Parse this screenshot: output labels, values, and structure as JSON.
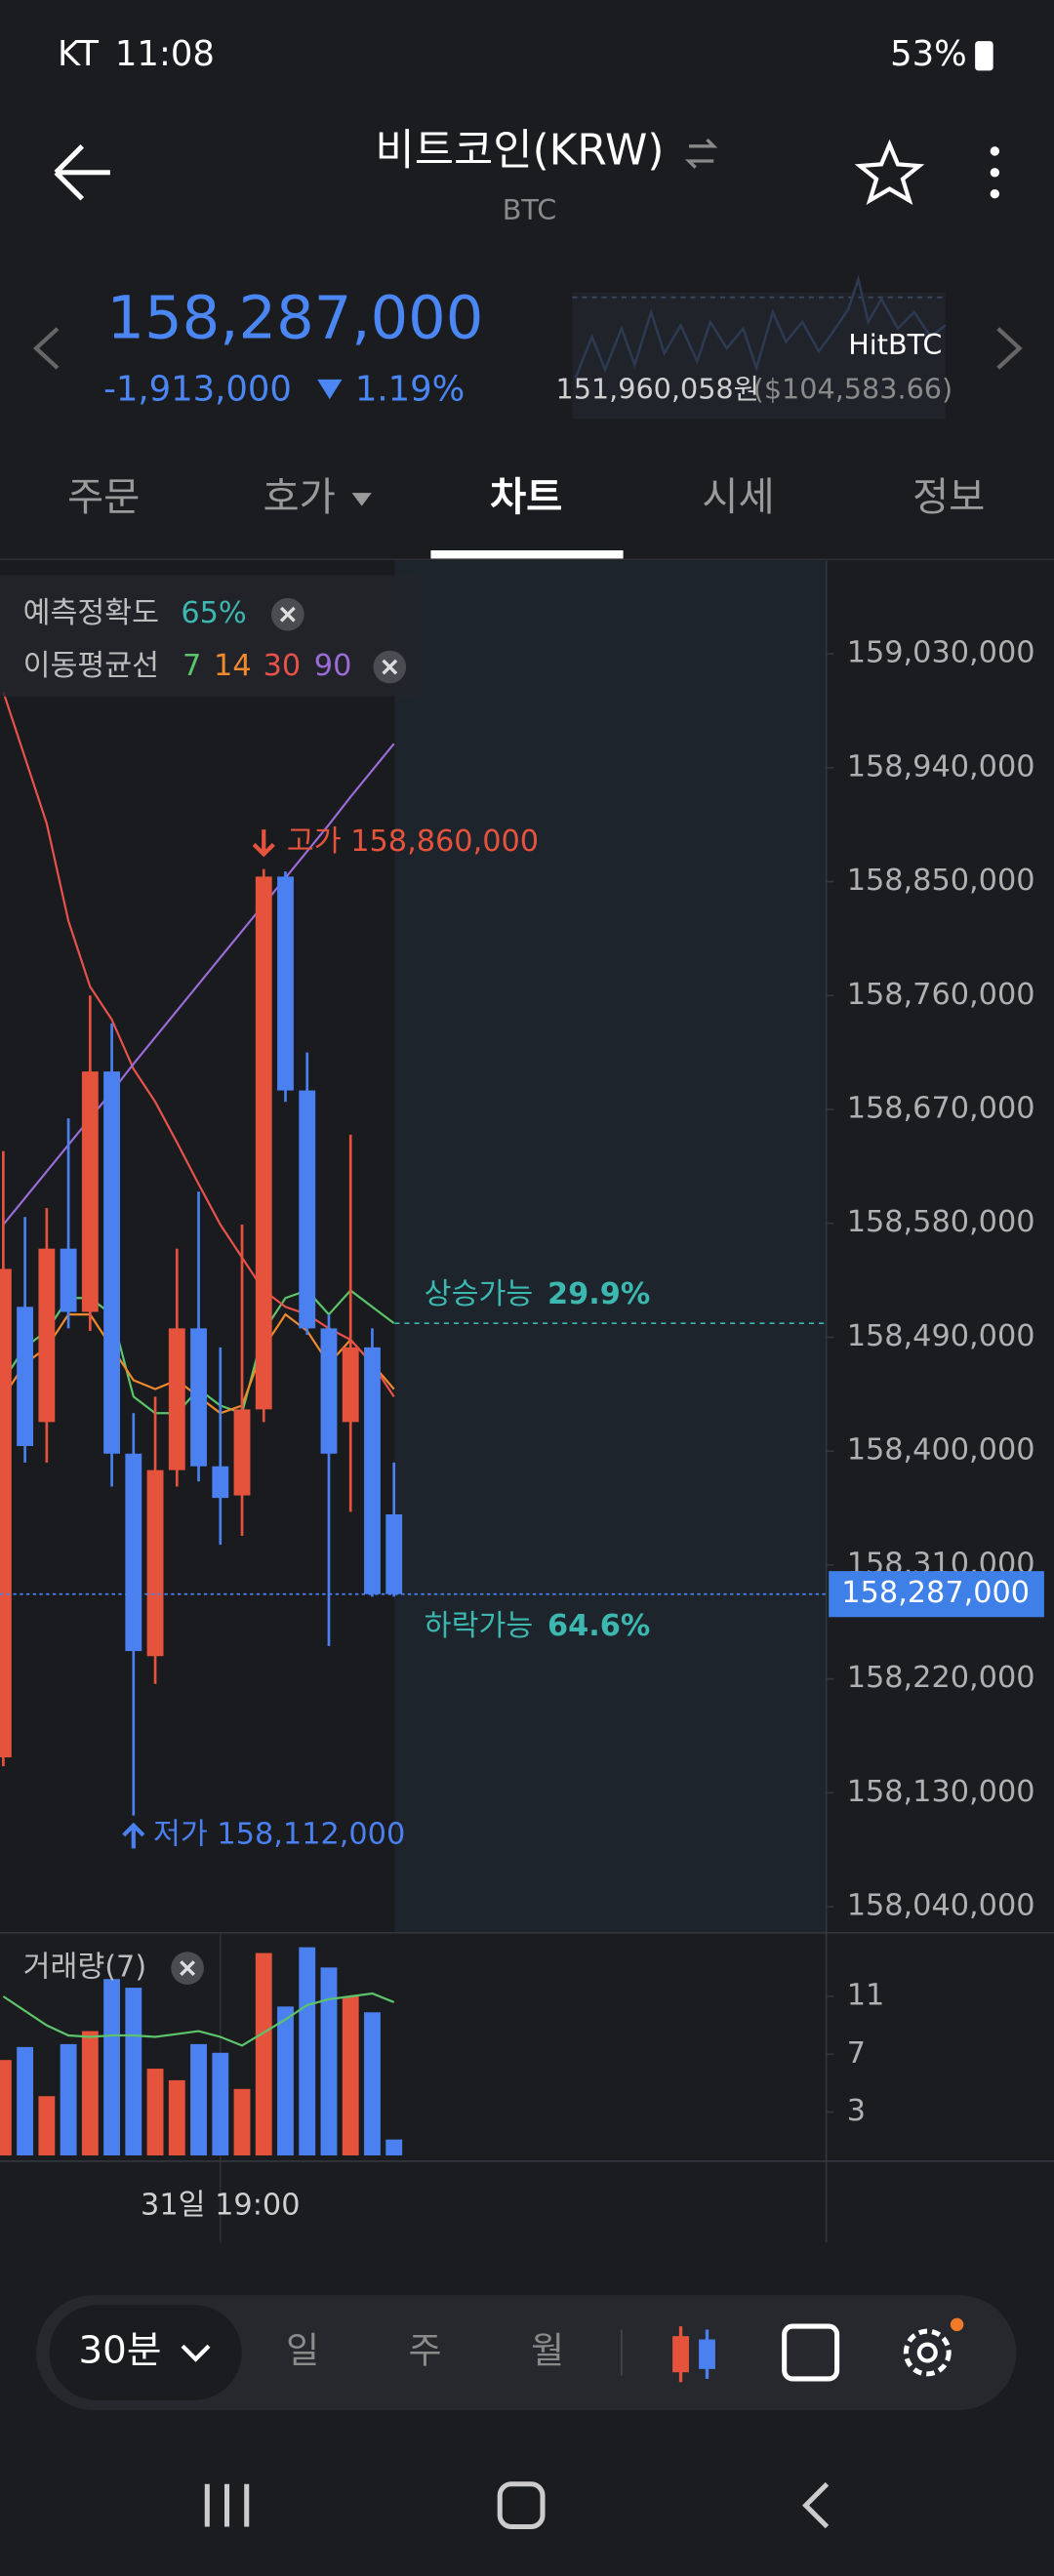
{
  "status": {
    "carrier": "KT",
    "time": "11:08",
    "battery": "53%"
  },
  "header": {
    "title": "비트코인(KRW)",
    "symbol": "BTC"
  },
  "ticker": {
    "price": "158,287,000",
    "change": "-1,913,000",
    "change_pct": "1.19%",
    "exchange": "HitBTC",
    "ref_price": "151,960,058원",
    "ref_usd": "($104,583.66)"
  },
  "tabs": [
    "주문",
    "호가",
    "차트",
    "시세",
    "정보"
  ],
  "active_tab": 2,
  "chart_data": {
    "type": "candlestick",
    "accuracy_label": "예측정확도",
    "accuracy": "65%",
    "ma_label": "이동평균선",
    "categories": [
      null,
      null,
      null,
      null,
      null,
      null,
      null,
      null,
      null,
      null,
      "31일 19:00",
      null,
      null,
      null,
      null,
      null,
      null,
      null,
      null
    ],
    "open": [
      158158000,
      158514000,
      158423000,
      158560000,
      158510000,
      158700000,
      158398000,
      158238000,
      158385000,
      158497000,
      158388000,
      158365000,
      158433000,
      158854000,
      158685000,
      158497000,
      158423000,
      158482000,
      158350000
    ],
    "high": [
      158637000,
      158585000,
      158592000,
      158663000,
      158760000,
      158738000,
      158430000,
      158443000,
      158560000,
      158605000,
      158482000,
      158579000,
      158860000,
      158858000,
      158715000,
      158508000,
      158650000,
      158497000,
      158391000
    ],
    "low": [
      158151000,
      158391000,
      158391000,
      158497000,
      158495000,
      158372000,
      158112000,
      158216000,
      158372000,
      158376000,
      158326000,
      158333000,
      158423000,
      158676000,
      158492000,
      158246000,
      158352000,
      158285000,
      158285000
    ],
    "close": [
      158544000,
      158404000,
      158560000,
      158510000,
      158700000,
      158398000,
      158242000,
      158385000,
      158497000,
      158388000,
      158363000,
      158433000,
      158854000,
      158685000,
      158497000,
      158398000,
      158482000,
      158287000,
      158287000
    ],
    "up_color": "#e5533d",
    "down_color": "#4a80f0",
    "series": [
      {
        "name": "7",
        "color": "#5cc46a",
        "values": [
          158456000,
          158482000,
          158495000,
          158521000,
          158521000,
          158508000,
          158443000,
          158430000,
          158430000,
          158449000,
          158436000,
          158430000,
          158495000,
          158521000,
          158527000,
          158508000,
          158527000,
          158514000,
          158501000
        ]
      },
      {
        "name": "14",
        "color": "#f08a2c",
        "values": [
          158443000,
          158469000,
          158482000,
          158508000,
          158508000,
          158482000,
          158456000,
          158449000,
          158456000,
          158443000,
          158430000,
          158436000,
          158482000,
          158508000,
          158495000,
          158469000,
          158488000,
          158469000,
          158449000
        ]
      },
      {
        "name": "30",
        "color": "#e8524a",
        "values": [
          159000000,
          158948000,
          158896000,
          158819000,
          158767000,
          158741000,
          158702000,
          158676000,
          158644000,
          158611000,
          158579000,
          158553000,
          158527000,
          158514000,
          158508000,
          158497000,
          158488000,
          158469000,
          158443000
        ]
      },
      {
        "name": "90",
        "color": "#9b6bd8",
        "values": [
          158579000,
          158600000,
          158621000,
          158642000,
          158663000,
          158684000,
          158706000,
          158727000,
          158748000,
          158769000,
          158790000,
          158811000,
          158832000,
          158853000,
          158874000,
          158895000,
          158917000,
          158938000,
          158959000
        ]
      }
    ],
    "ylim": [
      158020000,
      159104000
    ],
    "yticks": [
      {
        "value": 159030000,
        "label": "159,030,000"
      },
      {
        "value": 158940000,
        "label": "158,940,000"
      },
      {
        "value": 158850000,
        "label": "158,850,000"
      },
      {
        "value": 158760000,
        "label": "158,760,000"
      },
      {
        "value": 158670000,
        "label": "158,670,000"
      },
      {
        "value": 158580000,
        "label": "158,580,000"
      },
      {
        "value": 158490000,
        "label": "158,490,000"
      },
      {
        "value": 158400000,
        "label": "158,400,000"
      },
      {
        "value": 158310000,
        "label": "158,310,000"
      },
      {
        "value": 158220000,
        "label": "158,220,000"
      },
      {
        "value": 158130000,
        "label": "158,130,000"
      },
      {
        "value": 158040000,
        "label": "158,040,000"
      }
    ],
    "high_label": "고가 158,860,000",
    "high_index": 12,
    "low_label": "저가 158,112,000",
    "low_index": 6,
    "current_price": {
      "value": 158287000,
      "label": "158,287,000"
    },
    "prediction": {
      "up_label": "상승가능",
      "up": "29.9%",
      "up_level": 158501000,
      "down_label": "하락가능",
      "down": "64.6%"
    },
    "volume": {
      "title": "거래량(7)",
      "values": [
        6.6,
        7.5,
        4.1,
        7.7,
        8.6,
        12.2,
        11.6,
        6,
        5.2,
        7.7,
        7.1,
        4.6,
        14,
        10.3,
        14.4,
        13,
        11,
        9.9,
        1.1
      ],
      "ma_values": [
        11,
        10,
        9,
        8.3,
        8.2,
        8.3,
        8.3,
        8.2,
        8.4,
        8.6,
        8.2,
        7.6,
        8.5,
        9.4,
        10.4,
        10.8,
        11,
        11.2,
        10.6
      ],
      "ma_color": "#5cc46a",
      "ylim": [
        0,
        15
      ],
      "yticks": [
        11,
        7,
        3
      ]
    }
  },
  "timeframe": {
    "selected": "30분",
    "options": [
      "일",
      "주",
      "월"
    ]
  }
}
